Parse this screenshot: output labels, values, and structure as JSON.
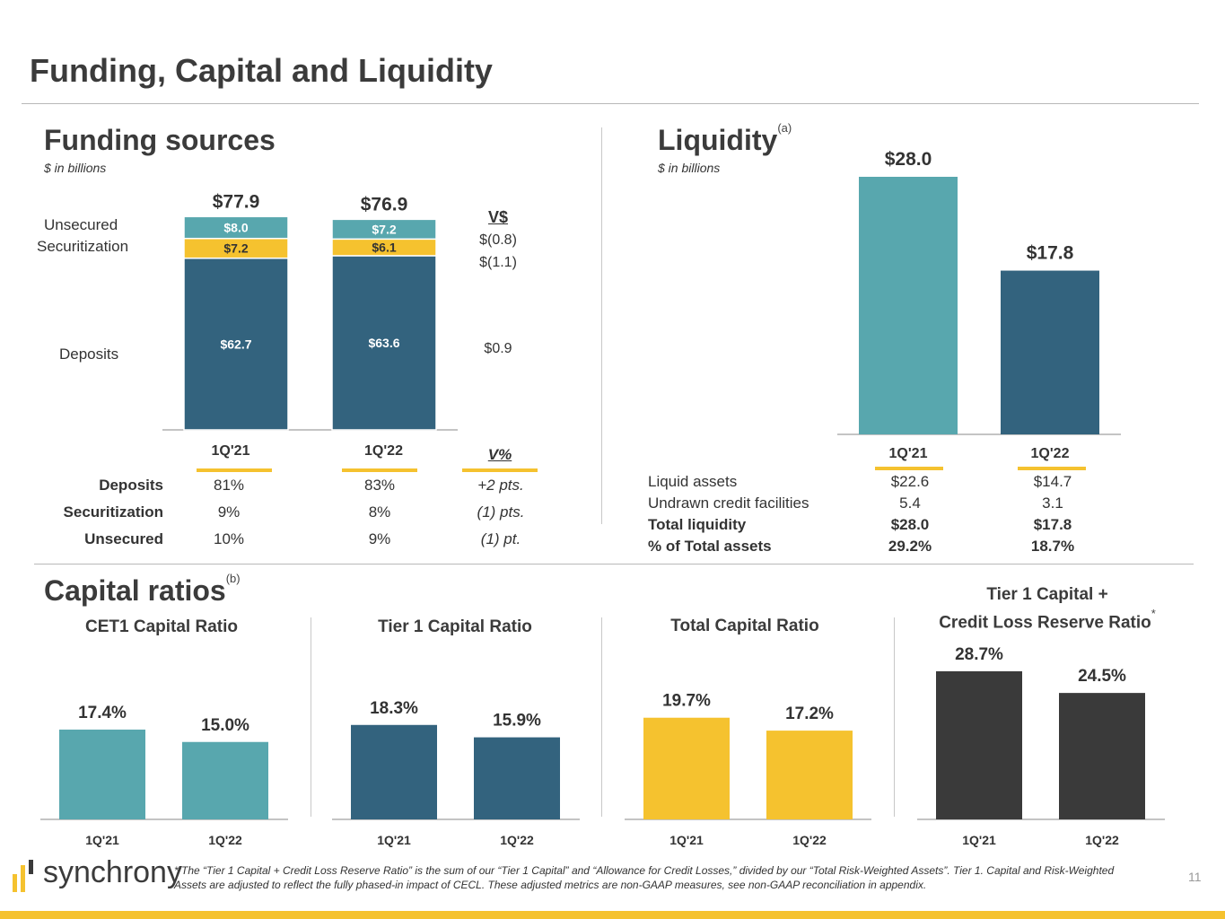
{
  "page": {
    "title": "Funding, Capital and Liquidity",
    "page_number": "11",
    "logo_text": "synchrony",
    "footnote_star": "*",
    "footnote": "The “Tier 1 Capital + Credit Loss Reserve Ratio” is the sum of our “Tier 1 Capital” and “Allowance for Credit Losses,” divided by our “Total Risk-Weighted Assets”. Tier 1. Capital and Risk-Weighted Assets are adjusted to reflect the fully phased-in impact of CECL. These adjusted metrics are non-GAAP measures, see non-GAAP reconciliation in appendix."
  },
  "funding": {
    "title": "Funding sources",
    "units": "$ in billions",
    "row_labels": {
      "unsecured": "Unsecured",
      "securitization": "Securitization",
      "deposits": "Deposits"
    },
    "variance_header": "V$",
    "variance": [
      "$(0.8)",
      "$(1.1)",
      "$0.9"
    ],
    "pct_header": "V%",
    "mix_rows": [
      {
        "label": "Deposits",
        "q21": "81%",
        "q22": "83%",
        "chg": "+2 pts."
      },
      {
        "label": "Securitization",
        "q21": "9%",
        "q22": "8%",
        "chg": "(1) pts."
      },
      {
        "label": "Unsecured",
        "q21": "10%",
        "q22": "9%",
        "chg": "(1) pt."
      }
    ]
  },
  "liquidity": {
    "title": "Liquidity",
    "superscript": "(a)",
    "units": "$ in billions",
    "table": [
      {
        "label": "Liquid assets",
        "q21": "$22.6",
        "q22": "$14.7",
        "bold": false
      },
      {
        "label": "Undrawn credit facilities",
        "q21": "5.4",
        "q22": "3.1",
        "bold": false
      },
      {
        "label": "Total liquidity",
        "q21": "$28.0",
        "q22": "$17.8",
        "bold": true
      },
      {
        "label": "% of Total assets",
        "q21": "29.2%",
        "q22": "18.7%",
        "bold": true
      }
    ]
  },
  "capital": {
    "title": "Capital ratios",
    "superscript": "(b)",
    "tier1_clr_line1": "Tier 1 Capital +",
    "tier1_clr_line2": "Credit Loss Reserve Ratio",
    "tier1_clr_star": "*"
  },
  "colors": {
    "teal": "#58a7ae",
    "navy": "#33637e",
    "yellow": "#f5c22f",
    "dark": "#3a3a3a",
    "axis": "#b0b0b0"
  },
  "chart_data": [
    {
      "id": "funding",
      "type": "bar",
      "stacked": true,
      "categories": [
        "1Q'21",
        "1Q'22"
      ],
      "totals": [
        "$77.9",
        "$76.9"
      ],
      "series": [
        {
          "name": "Deposits",
          "values": [
            62.7,
            63.6
          ],
          "labels": [
            "$62.7",
            "$63.6"
          ],
          "color": "#33637e"
        },
        {
          "name": "Securitization",
          "values": [
            7.2,
            6.1
          ],
          "labels": [
            "$7.2",
            "$6.1"
          ],
          "color": "#f5c22f"
        },
        {
          "name": "Unsecured",
          "values": [
            8.0,
            7.2
          ],
          "labels": [
            "$8.0",
            "$7.2"
          ],
          "color": "#58a7ae"
        }
      ],
      "ylim": [
        0,
        80
      ]
    },
    {
      "id": "liquidity",
      "type": "bar",
      "title": "Liquidity",
      "categories": [
        "1Q'21",
        "1Q'22"
      ],
      "values": [
        28.0,
        17.8
      ],
      "labels": [
        "$28.0",
        "$17.8"
      ],
      "colors": [
        "#58a7ae",
        "#33637e"
      ],
      "ylim": [
        0,
        28
      ]
    },
    {
      "id": "cet1",
      "type": "bar",
      "title": "CET1 Capital Ratio",
      "categories": [
        "1Q'21",
        "1Q'22"
      ],
      "values": [
        17.4,
        15.0
      ],
      "labels": [
        "17.4%",
        "15.0%"
      ],
      "color": "#58a7ae"
    },
    {
      "id": "tier1",
      "type": "bar",
      "title": "Tier 1 Capital Ratio",
      "categories": [
        "1Q'21",
        "1Q'22"
      ],
      "values": [
        18.3,
        15.9
      ],
      "labels": [
        "18.3%",
        "15.9%"
      ],
      "color": "#33637e"
    },
    {
      "id": "total",
      "type": "bar",
      "title": "Total Capital Ratio",
      "categories": [
        "1Q'21",
        "1Q'22"
      ],
      "values": [
        19.7,
        17.2
      ],
      "labels": [
        "19.7%",
        "17.2%"
      ],
      "color": "#f5c22f"
    },
    {
      "id": "tier1clr",
      "type": "bar",
      "title": "Tier 1 Capital + Credit Loss Reserve Ratio",
      "categories": [
        "1Q'21",
        "1Q'22"
      ],
      "values": [
        28.7,
        24.5
      ],
      "labels": [
        "28.7%",
        "24.5%"
      ],
      "color": "#3a3a3a"
    }
  ]
}
